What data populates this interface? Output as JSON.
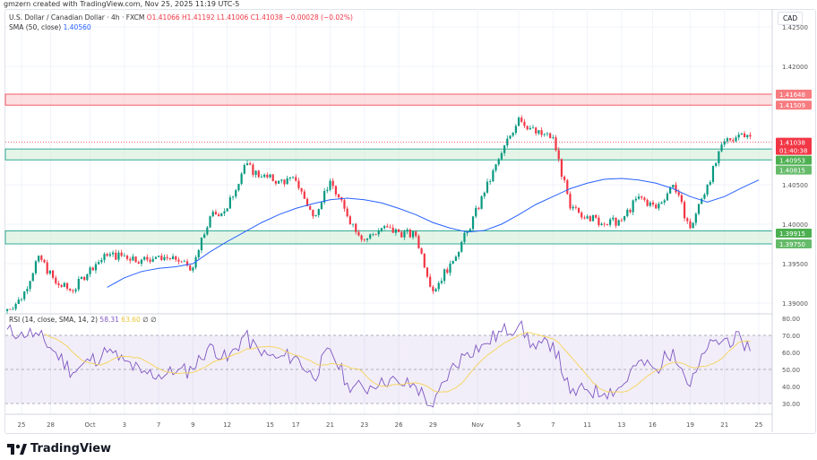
{
  "credit": "gmzern created with TradingView.com, Nov 25, 2025 11:19 UTC-5",
  "legend": {
    "symbol": "U.S. Dollar / Canadian Dollar · 4h · FXCM",
    "open": "O1.41066",
    "high": "H1.41192",
    "low": "L1.41006",
    "close": "C1.41038",
    "change": "−0.00028 (−0.02%)",
    "sma_label": "SMA (50, close)",
    "sma_value": "1.40560"
  },
  "rsi_legend": {
    "label": "RSI (14, close, SMA, 14, 2)",
    "rsi": "58.31",
    "rsi_sma": "63.60",
    "extra": "∅ ∅"
  },
  "currency": "CAD",
  "logo": "TradingView",
  "countdown": "01:40:38",
  "colors": {
    "up": "#089981",
    "down": "#f23645",
    "sma": "#2962ff",
    "rsi": "#7e57c2",
    "rsi_sma": "#f5d565",
    "resistance_zone": "#f7c5c9",
    "support_zone": "#cdebd3"
  },
  "chart_data": {
    "type": "candlestick",
    "ylim": [
      1.3885,
      1.4265
    ],
    "y_ticks": [
      "1.42500",
      "1.42000",
      "1.40500",
      "1.40000",
      "1.39500",
      "1.39000"
    ],
    "y_tick_values": [
      1.425,
      1.42,
      1.405,
      1.4,
      1.395,
      1.39
    ],
    "x_tick_labels": [
      "25",
      "28",
      "Oct",
      "3",
      "7",
      "9",
      "12",
      "15",
      "17",
      "21",
      "23",
      "26",
      "29",
      "Nov",
      "5",
      "7",
      "11",
      "13",
      "16",
      "19",
      "21",
      "25"
    ],
    "days": [
      "Sep 25",
      "Sep 26",
      "Sep 29",
      "Sep 30",
      "Oct 1",
      "Oct 2",
      "Oct 3",
      "Oct 6",
      "Oct 7",
      "Oct 8",
      "Oct 9",
      "Oct 10",
      "Oct 13",
      "Oct 14",
      "Oct 15",
      "Oct 16",
      "Oct 17",
      "Oct 20",
      "Oct 21",
      "Oct 22",
      "Oct 23",
      "Oct 24",
      "Oct 27",
      "Oct 28",
      "Oct 29",
      "Oct 30",
      "Oct 31",
      "Nov 3",
      "Nov 4",
      "Nov 5",
      "Nov 6",
      "Nov 7",
      "Nov 10",
      "Nov 11",
      "Nov 12",
      "Nov 13",
      "Nov 14",
      "Nov 17",
      "Nov 18",
      "Nov 19",
      "Nov 20",
      "Nov 21",
      "Nov 24",
      "Nov 25"
    ],
    "daily_close": [
      1.3905,
      1.396,
      1.3925,
      1.3915,
      1.3945,
      1.396,
      1.396,
      1.3955,
      1.396,
      1.3955,
      1.3945,
      1.401,
      1.402,
      1.4075,
      1.406,
      1.4055,
      1.4055,
      1.401,
      1.4055,
      1.401,
      1.398,
      1.3995,
      1.399,
      1.3985,
      1.3915,
      1.395,
      1.399,
      1.404,
      1.409,
      1.4135,
      1.4115,
      1.411,
      1.402,
      1.401,
      1.4,
      1.4005,
      1.4035,
      1.402,
      1.405,
      1.3995,
      1.405,
      1.4105,
      1.4115,
      1.41038
    ],
    "sma50": [
      null,
      null,
      null,
      null,
      null,
      1.392,
      1.3932,
      1.394,
      1.3944,
      1.3946,
      1.395,
      1.3965,
      1.3978,
      1.399,
      1.4002,
      1.4012,
      1.402,
      1.4026,
      1.4031,
      1.4033,
      1.4031,
      1.4027,
      1.402,
      1.4012,
      1.4002,
      1.3995,
      1.399,
      1.3992,
      1.4,
      1.4012,
      1.4025,
      1.4035,
      1.4045,
      1.4052,
      1.4057,
      1.4058,
      1.4056,
      1.4052,
      1.4045,
      1.4035,
      1.4028,
      1.4035,
      1.4046,
      1.4056
    ],
    "zones": [
      {
        "top": 1.41648,
        "bottom": 1.41509,
        "kind": "resistance",
        "labels": [
          "1.41648",
          "1.41509"
        ]
      },
      {
        "top": 1.40953,
        "bottom": 1.40815,
        "kind": "support",
        "labels": [
          "1.40953",
          "1.40815"
        ]
      },
      {
        "top": 1.39915,
        "bottom": 1.3975,
        "kind": "support",
        "labels": [
          "1.39915",
          "1.39750"
        ]
      }
    ],
    "last_price": 1.41038,
    "last_price_label": "1.41038",
    "rsi": {
      "ylim": [
        25,
        82
      ],
      "y_ticks": [
        "80.00",
        "70.00",
        "60.00",
        "50.00",
        "40.00",
        "30.00"
      ],
      "y_tick_values": [
        80,
        70,
        60,
        50,
        40,
        30
      ],
      "band": [
        30,
        70
      ],
      "daily": [
        72,
        70,
        60,
        48,
        55,
        60,
        55,
        48,
        47,
        48,
        50,
        65,
        55,
        70,
        58,
        57,
        58,
        45,
        62,
        42,
        38,
        45,
        42,
        40,
        28,
        50,
        60,
        65,
        72,
        76,
        62,
        66,
        36,
        38,
        36,
        40,
        55,
        50,
        62,
        40,
        62,
        68,
        67,
        58.31
      ]
    }
  }
}
